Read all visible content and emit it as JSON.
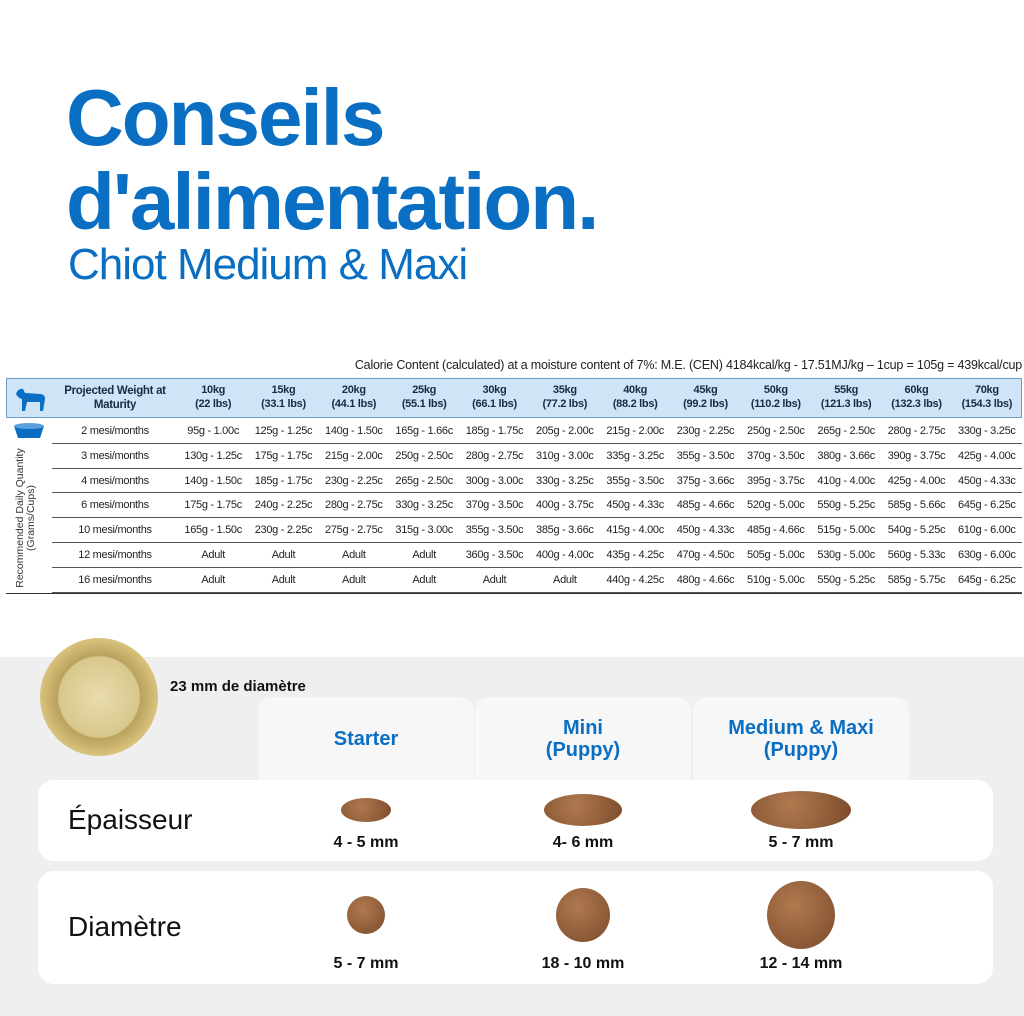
{
  "header": {
    "title_line1": "Conseils",
    "title_line2": "d'alimentation.",
    "subtitle": "Chiot Medium & Maxi"
  },
  "calorie_note": "Calorie Content (calculated) at a moisture content of 7%: M.E. (CEN) 4184kcal/kg - 17.51MJ/kg – 1cup = 105g = 439kcal/cup",
  "table": {
    "header_label": "Projected Weight at Maturity",
    "side_label": "Recommended Daily Quantity (Grams/Cups)",
    "columns": [
      {
        "kg": "10kg",
        "lbs": "(22 lbs)"
      },
      {
        "kg": "15kg",
        "lbs": "(33.1 lbs)"
      },
      {
        "kg": "20kg",
        "lbs": "(44.1 lbs)"
      },
      {
        "kg": "25kg",
        "lbs": "(55.1 lbs)"
      },
      {
        "kg": "30kg",
        "lbs": "(66.1 lbs)"
      },
      {
        "kg": "35kg",
        "lbs": "(77.2 lbs)"
      },
      {
        "kg": "40kg",
        "lbs": "(88.2 lbs)"
      },
      {
        "kg": "45kg",
        "lbs": "(99.2 lbs)"
      },
      {
        "kg": "50kg",
        "lbs": "(110.2 lbs)"
      },
      {
        "kg": "55kg",
        "lbs": "(121.3 lbs)"
      },
      {
        "kg": "60kg",
        "lbs": "(132.3 lbs)"
      },
      {
        "kg": "70kg",
        "lbs": "(154.3 lbs)"
      }
    ],
    "rows": [
      {
        "age": "2 mesi/months",
        "cells": [
          "95g - 1.00c",
          "125g - 1.25c",
          "140g - 1.50c",
          "165g - 1.66c",
          "185g - 1.75c",
          "205g - 2.00c",
          "215g - 2.00c",
          "230g - 2.25c",
          "250g - 2.50c",
          "265g - 2.50c",
          "280g - 2.75c",
          "330g - 3.25c"
        ]
      },
      {
        "age": "3 mesi/months",
        "cells": [
          "130g - 1.25c",
          "175g - 1.75c",
          "215g - 2.00c",
          "250g - 2.50c",
          "280g - 2.75c",
          "310g - 3.00c",
          "335g - 3.25c",
          "355g - 3.50c",
          "370g - 3.50c",
          "380g - 3.66c",
          "390g - 3.75c",
          "425g - 4.00c"
        ]
      },
      {
        "age": "4 mesi/months",
        "cells": [
          "140g - 1.50c",
          "185g - 1.75c",
          "230g - 2.25c",
          "265g - 2.50c",
          "300g - 3.00c",
          "330g - 3.25c",
          "355g - 3.50c",
          "375g - 3.66c",
          "395g - 3.75c",
          "410g - 4.00c",
          "425g - 4.00c",
          "450g - 4.33c"
        ]
      },
      {
        "age": "6 mesi/months",
        "cells": [
          "175g - 1.75c",
          "240g - 2.25c",
          "280g - 2.75c",
          "330g - 3.25c",
          "370g - 3.50c",
          "400g - 3.75c",
          "450g - 4.33c",
          "485g - 4.66c",
          "520g - 5.00c",
          "550g - 5.25c",
          "585g - 5.66c",
          "645g - 6.25c"
        ]
      },
      {
        "age": "10 mesi/months",
        "cells": [
          "165g - 1.50c",
          "230g - 2.25c",
          "275g - 2.75c",
          "315g - 3.00c",
          "355g - 3.50c",
          "385g - 3.66c",
          "415g - 4.00c",
          "450g - 4.33c",
          "485g - 4.66c",
          "515g - 5.00c",
          "540g - 5.25c",
          "610g - 6.00c"
        ]
      },
      {
        "age": "12 mesi/months",
        "cells": [
          "Adult",
          "Adult",
          "Adult",
          "Adult",
          "360g - 3.50c",
          "400g - 4.00c",
          "435g - 4.25c",
          "470g - 4.50c",
          "505g - 5.00c",
          "530g - 5.00c",
          "560g - 5.33c",
          "630g - 6.00c"
        ]
      },
      {
        "age": "16 mesi/months",
        "cells": [
          "Adult",
          "Adult",
          "Adult",
          "Adult",
          "Adult",
          "Adult",
          "440g - 4.25c",
          "480g - 4.66c",
          "510g - 5.00c",
          "550g - 5.25c",
          "585g - 5.75c",
          "645g - 6.25c"
        ]
      }
    ]
  },
  "comparison": {
    "coin_label": "23 mm de diamètre",
    "products": [
      {
        "lines": [
          "Starter"
        ]
      },
      {
        "lines": [
          "Mini",
          "(Puppy)"
        ]
      },
      {
        "lines": [
          "Medium & Maxi",
          "(Puppy)"
        ]
      }
    ],
    "rows": [
      {
        "label": "Épaisseur",
        "values": [
          "4 - 5 mm",
          "4- 6 mm",
          "5 - 7 mm"
        ]
      },
      {
        "label": "Diamètre",
        "values": [
          "5 - 7 mm",
          "18 - 10 mm",
          "12 - 14 mm"
        ]
      }
    ]
  }
}
